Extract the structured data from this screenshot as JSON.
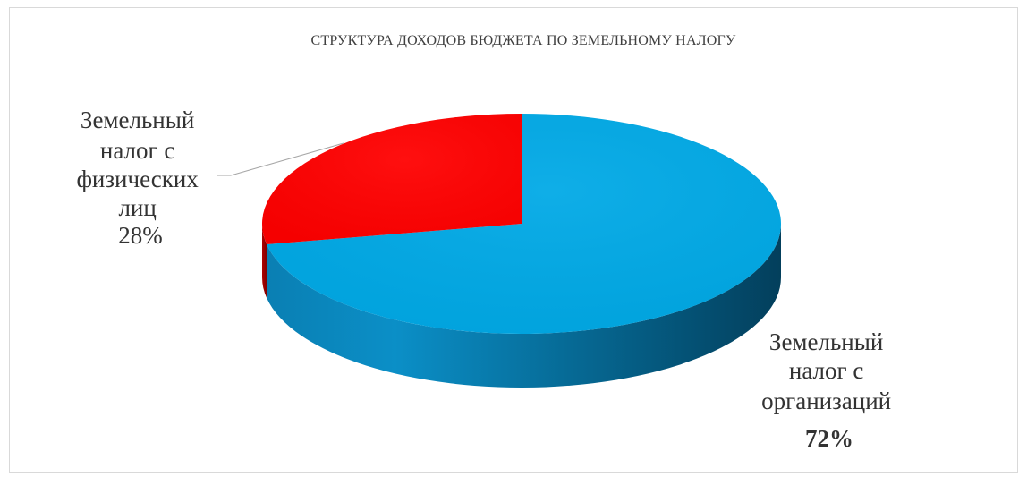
{
  "chart_data": {
    "type": "pie",
    "style": "3d",
    "title": "СТРУКТУРА ДОХОДОВ БЮДЖЕТА ПО ЗЕМЕЛЬНОМУ  НАЛОГУ",
    "legend": "none",
    "slices": [
      {
        "label_lines": [
          "Земельный",
          "налог с",
          "организаций"
        ],
        "percent_label": "72%",
        "value": 72,
        "color": "#00a9e6"
      },
      {
        "label_lines": [
          "Земельный",
          "налог с",
          "физических",
          "лиц"
        ],
        "percent_label": "28%",
        "value": 28,
        "color": "#ff0000"
      }
    ]
  }
}
